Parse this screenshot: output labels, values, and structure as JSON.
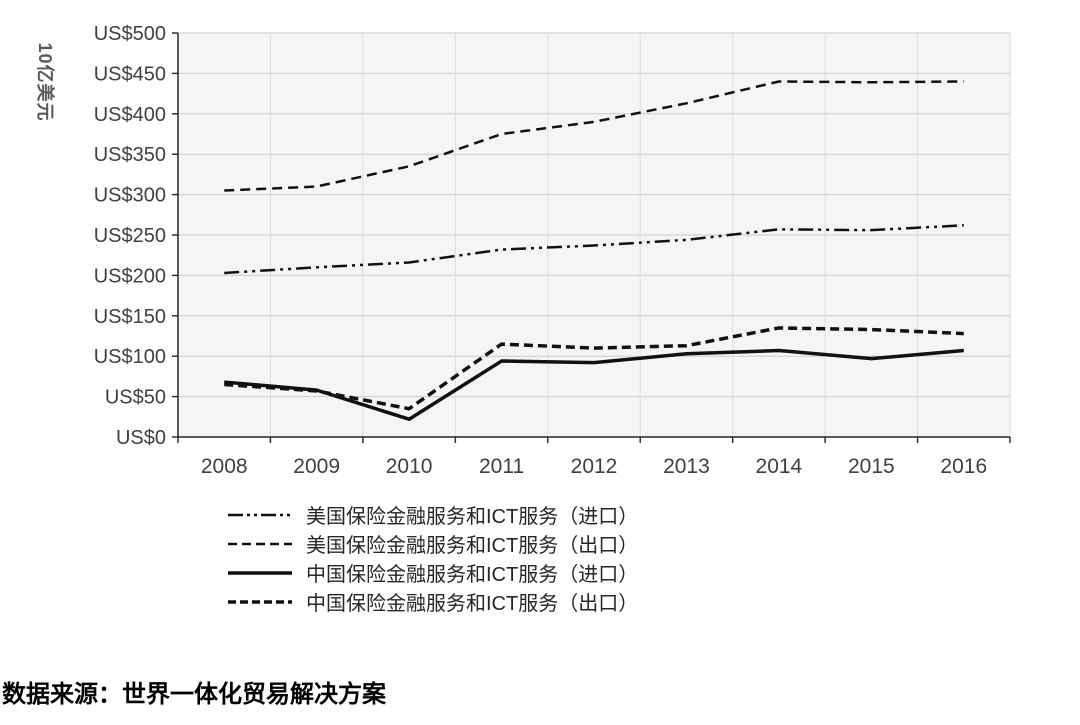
{
  "chart_data": {
    "type": "line",
    "title": "",
    "xlabel": "",
    "ylabel": "10亿美元",
    "ylim": [
      0,
      500
    ],
    "y_tick_step": 50,
    "y_tick_labels": [
      "US$0",
      "US$50",
      "US$100",
      "US$150",
      "US$200",
      "US$250",
      "US$300",
      "US$350",
      "US$400",
      "US$450",
      "US$500"
    ],
    "categories": [
      "2008",
      "2009",
      "2010",
      "2011",
      "2012",
      "2013",
      "2014",
      "2015",
      "2016"
    ],
    "grid": true,
    "legend_position": "bottom-left",
    "line_color": "#111111",
    "series": [
      {
        "name": "美国保险金融服务和ICT服务（进口）",
        "line_style": "dash-dot-dot",
        "width": 2.5,
        "values": [
          203,
          210,
          216,
          232,
          237,
          244,
          257,
          256,
          262
        ]
      },
      {
        "name": "美国保险金融服务和ICT服务（出口）",
        "line_style": "dashed",
        "width": 2.5,
        "values": [
          305,
          310,
          335,
          375,
          390,
          413,
          440,
          439,
          440
        ]
      },
      {
        "name": "中国保险金融服务和ICT服务（进口）",
        "line_style": "solid",
        "width": 3.5,
        "values": [
          68,
          58,
          22,
          94,
          92,
          103,
          107,
          97,
          107
        ]
      },
      {
        "name": "中国保险金融服务和ICT服务（出口）",
        "line_style": "dashed-bold",
        "width": 3.5,
        "values": [
          65,
          57,
          35,
          115,
          110,
          113,
          135,
          133,
          128
        ]
      }
    ]
  },
  "source_note": "数据来源：世界一体化贸易解决方案"
}
